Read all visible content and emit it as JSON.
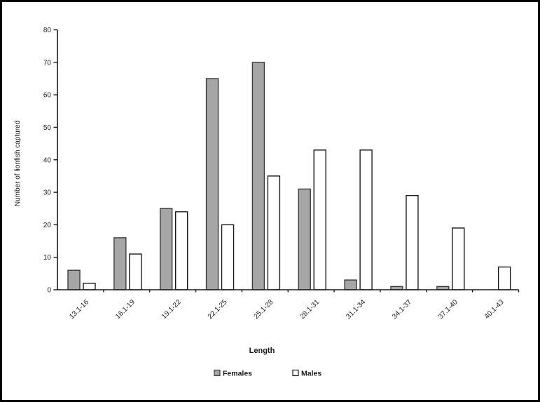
{
  "figure": {
    "description_label": "Grouped bar chart of lionfish captured by length class and sex"
  },
  "chart_data": {
    "type": "bar",
    "title": "",
    "xlabel": "Length",
    "ylabel": "Number of lionfish captured",
    "categories": [
      "13.1-16",
      "16.1-19",
      "19.1-22",
      "22.1-25",
      "25.1-28",
      "28.1-31",
      "31.1-34",
      "34.1-37",
      "37.1-40",
      "40.1-43"
    ],
    "series": [
      {
        "name": "Females",
        "values": [
          6,
          16,
          25,
          65,
          70,
          31,
          3,
          1,
          1,
          0
        ],
        "fill": "#a6a6a6",
        "stroke": "#3c3c3c"
      },
      {
        "name": "Males",
        "values": [
          2,
          11,
          24,
          20,
          35,
          43,
          43,
          29,
          19,
          7
        ],
        "fill": "#ffffff",
        "stroke": "#1a1a1a"
      }
    ],
    "ylim": [
      0,
      80
    ],
    "y_ticks": [
      0,
      10,
      20,
      30,
      40,
      50,
      60,
      70,
      80
    ],
    "grid": false,
    "legend_position": "bottom",
    "colors": {
      "axis": "#1a1a1a",
      "text": "#1a1a1a",
      "border": "#000000",
      "background": "#ffffff"
    }
  }
}
